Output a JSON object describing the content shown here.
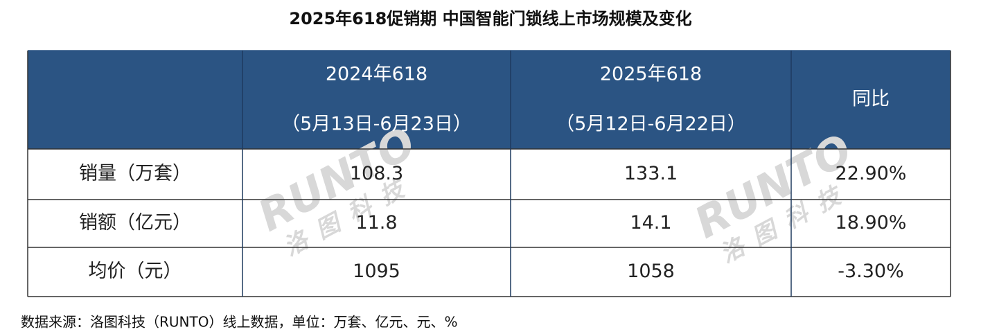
{
  "title": "2025年618促销期 中国智能门锁线上市场规模及变化",
  "table": {
    "columns": [
      {
        "lines": [
          "2024年618",
          "（5月13日-6月23日）"
        ]
      },
      {
        "lines": [
          "2025年618",
          "（5月12日-6月22日）"
        ]
      },
      {
        "lines": [
          "同比"
        ]
      }
    ],
    "rows": [
      [
        "销量（万套）",
        "108.3",
        "133.1",
        "22.90%"
      ],
      [
        "销额（亿元）",
        "11.8",
        "14.1",
        "18.90%"
      ],
      [
        "均价（元）",
        "1095",
        "1058",
        "-3.30%"
      ]
    ]
  },
  "watermark": {
    "brand": "RUNTO",
    "name": "洛图科技"
  },
  "source": "数据来源：洛图科技（RUNTO）线上数据，单位：万套、亿元、元、%"
}
